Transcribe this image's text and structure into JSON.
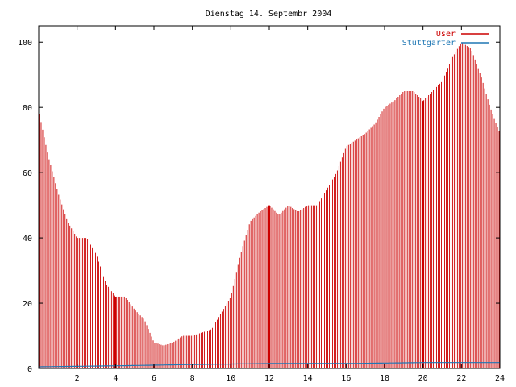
{
  "chart_data": {
    "type": "bar",
    "title": "Dienstag 14. Septembr 2004",
    "xlabel": "",
    "ylabel": "",
    "xlim": [
      0,
      24
    ],
    "ylim": [
      0,
      105
    ],
    "x_ticks": [
      2,
      4,
      6,
      8,
      10,
      12,
      14,
      16,
      18,
      20,
      22,
      24
    ],
    "y_ticks": [
      0,
      20,
      40,
      60,
      80,
      100
    ],
    "x_tick_labels": [
      "2",
      "4",
      "6",
      "8",
      "10",
      "12",
      "14",
      "16",
      "18",
      "20",
      "22",
      "24"
    ],
    "y_tick_labels": [
      "0",
      "20",
      "40",
      "60",
      "80",
      "100"
    ],
    "grid": false,
    "legend_position": "top-right",
    "series": [
      {
        "name": "User",
        "color": "#cc0000",
        "style": "impulses",
        "x": [
          0.0,
          0.5,
          1.0,
          1.5,
          2.0,
          2.5,
          3.0,
          3.5,
          4.0,
          4.5,
          5.0,
          5.5,
          6.0,
          6.5,
          7.0,
          7.5,
          8.0,
          8.5,
          9.0,
          9.5,
          10.0,
          10.5,
          11.0,
          11.5,
          12.0,
          12.5,
          13.0,
          13.5,
          14.0,
          14.5,
          15.0,
          15.5,
          16.0,
          16.5,
          17.0,
          17.5,
          18.0,
          18.5,
          19.0,
          19.5,
          20.0,
          20.5,
          21.0,
          21.5,
          22.0,
          22.5,
          23.0,
          23.5,
          24.0
        ],
        "values": [
          79,
          65,
          54,
          45,
          40,
          40,
          35,
          26,
          22,
          22,
          18,
          15,
          8,
          7,
          8,
          10,
          10,
          11,
          12,
          17,
          22,
          35,
          45,
          48,
          50,
          47,
          50,
          48,
          50,
          50,
          55,
          60,
          68,
          70,
          72,
          75,
          80,
          82,
          85,
          85,
          82,
          85,
          88,
          95,
          100,
          98,
          90,
          80,
          72
        ]
      },
      {
        "name": "Stuttgarter",
        "color": "#1f77b4",
        "style": "impulses",
        "x": [
          0,
          4,
          8,
          12,
          16,
          20,
          24
        ],
        "values": [
          0.5,
          0.8,
          1.2,
          1.5,
          1.5,
          1.8,
          1.8
        ]
      }
    ],
    "highlight_x": [
      4,
      12,
      20
    ]
  }
}
